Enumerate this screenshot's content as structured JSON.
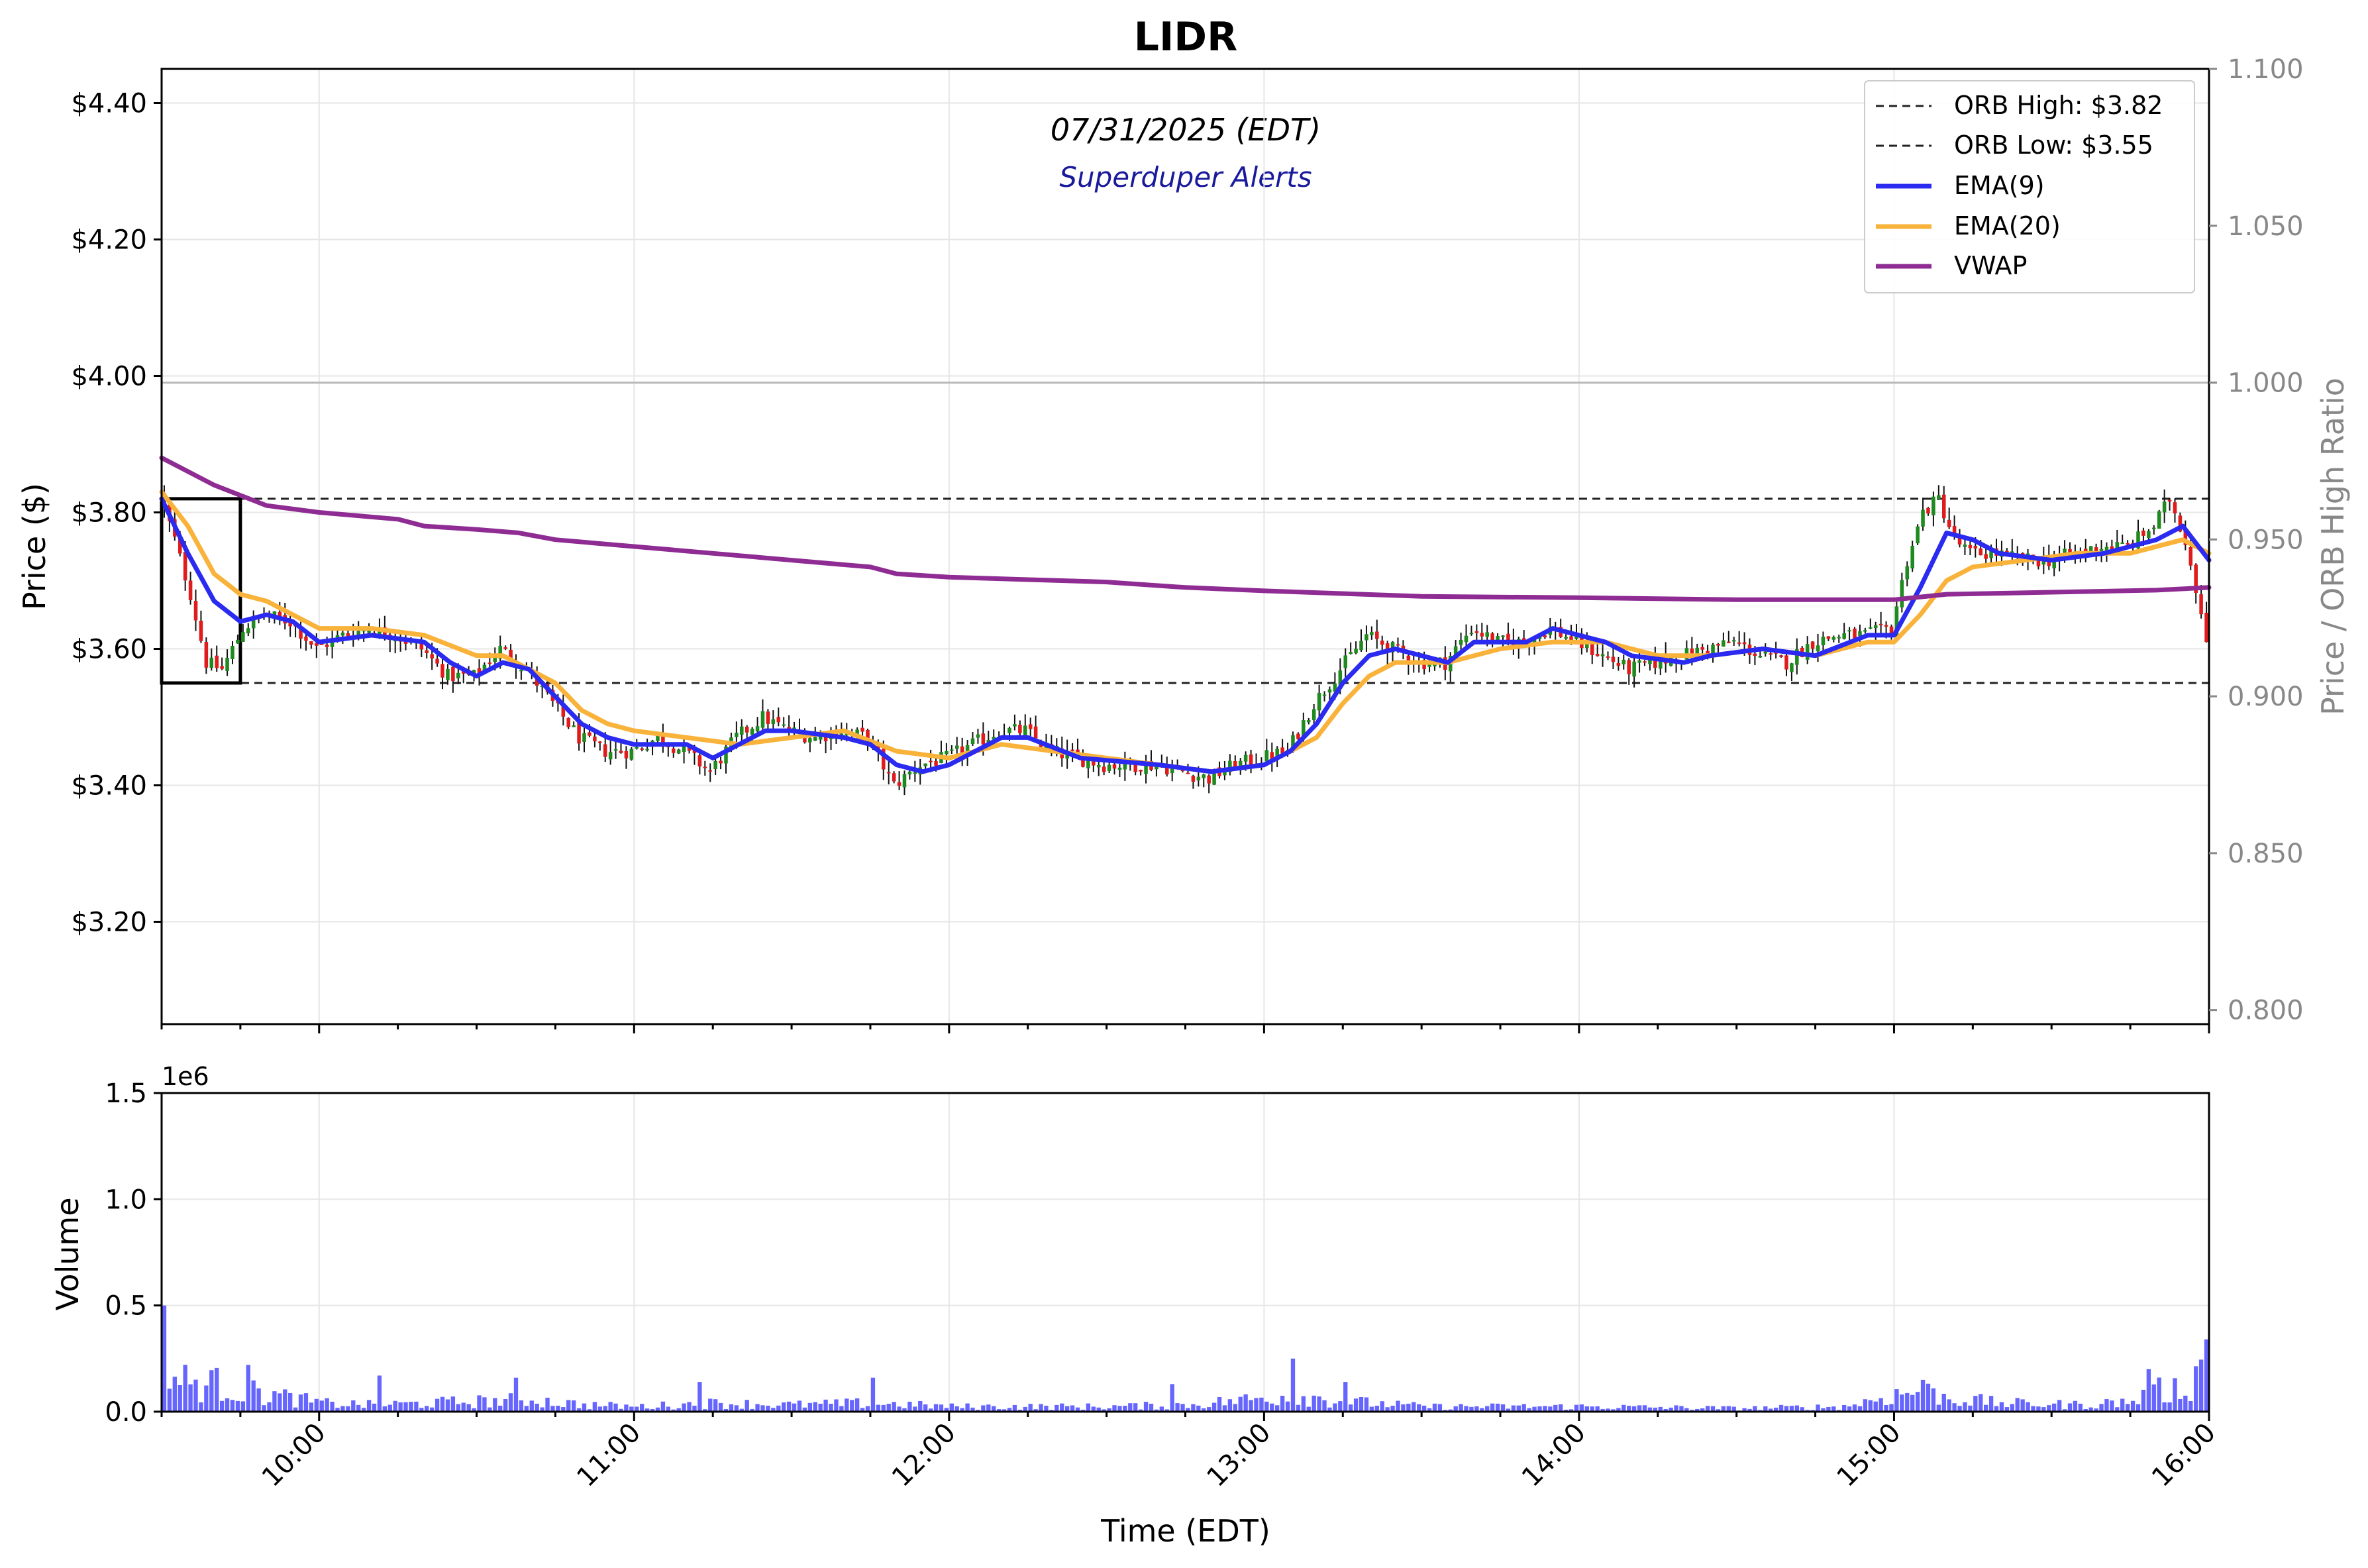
{
  "title": "LIDR",
  "subtitle": "07/31/2025 (EDT)",
  "watermark": "Superduper Alerts",
  "chart_data": [
    {
      "type": "candlestick",
      "panel": "price",
      "title": "LIDR",
      "ylabel": "Price ($)",
      "y2label": "Price / ORB High Ratio",
      "ylim": [
        3.05,
        4.45
      ],
      "y2lim": [
        0.7955,
        1.1
      ],
      "y_ticks": [
        "$3.20",
        "$3.40",
        "$3.60",
        "$3.80",
        "$4.00",
        "$4.20",
        "$4.40"
      ],
      "y_tick_values": [
        3.2,
        3.4,
        3.6,
        3.8,
        4.0,
        4.2,
        4.4
      ],
      "y2_ticks": [
        "0.800",
        "0.850",
        "0.900",
        "0.950",
        "1.000",
        "1.050",
        "1.100"
      ],
      "y2_tick_values": [
        0.8,
        0.85,
        0.9,
        0.95,
        1.0,
        1.05,
        1.1
      ],
      "xlim": [
        "09:30",
        "16:00"
      ],
      "grid": true,
      "legend_position": "top-right",
      "legend": [
        {
          "label": "ORB High: $3.82",
          "style": "dashed",
          "color": "#222222"
        },
        {
          "label": "ORB Low: $3.55",
          "style": "dashed",
          "color": "#222222"
        },
        {
          "label": "EMA(9)",
          "style": "solid",
          "color": "#2a2af0"
        },
        {
          "label": "EMA(20)",
          "style": "solid",
          "color": "#f9b23a"
        },
        {
          "label": "VWAP",
          "style": "solid",
          "color": "#8e2c93"
        }
      ],
      "orb_high": 3.82,
      "orb_low": 3.55,
      "orb_window": [
        "09:30",
        "09:45"
      ],
      "ratio_1_line": 1.0,
      "candle_colors": {
        "up": "#1f8a1f",
        "down": "#e01b1b"
      },
      "price_path": [
        [
          "09:30",
          3.83
        ],
        [
          "09:33",
          3.76
        ],
        [
          "09:36",
          3.68
        ],
        [
          "09:39",
          3.58
        ],
        [
          "09:42",
          3.57
        ],
        [
          "09:46",
          3.63
        ],
        [
          "09:50",
          3.65
        ],
        [
          "09:55",
          3.64
        ],
        [
          "10:00",
          3.6
        ],
        [
          "10:05",
          3.62
        ],
        [
          "10:10",
          3.63
        ],
        [
          "10:15",
          3.62
        ],
        [
          "10:20",
          3.6
        ],
        [
          "10:25",
          3.56
        ],
        [
          "10:30",
          3.56
        ],
        [
          "10:35",
          3.6
        ],
        [
          "10:40",
          3.57
        ],
        [
          "10:45",
          3.52
        ],
        [
          "10:50",
          3.47
        ],
        [
          "10:55",
          3.45
        ],
        [
          "11:00",
          3.45
        ],
        [
          "11:05",
          3.47
        ],
        [
          "11:10",
          3.45
        ],
        [
          "11:15",
          3.42
        ],
        [
          "11:20",
          3.47
        ],
        [
          "11:25",
          3.5
        ],
        [
          "11:30",
          3.48
        ],
        [
          "11:35",
          3.47
        ],
        [
          "11:40",
          3.48
        ],
        [
          "11:45",
          3.47
        ],
        [
          "11:50",
          3.4
        ],
        [
          "11:55",
          3.43
        ],
        [
          "12:00",
          3.44
        ],
        [
          "12:05",
          3.46
        ],
        [
          "12:10",
          3.48
        ],
        [
          "12:15",
          3.48
        ],
        [
          "12:20",
          3.45
        ],
        [
          "12:25",
          3.44
        ],
        [
          "12:30",
          3.43
        ],
        [
          "12:35",
          3.43
        ],
        [
          "12:40",
          3.43
        ],
        [
          "12:45",
          3.42
        ],
        [
          "12:50",
          3.41
        ],
        [
          "12:55",
          3.43
        ],
        [
          "13:00",
          3.44
        ],
        [
          "13:05",
          3.45
        ],
        [
          "13:10",
          3.52
        ],
        [
          "13:15",
          3.57
        ],
        [
          "13:20",
          3.62
        ],
        [
          "13:25",
          3.6
        ],
        [
          "13:30",
          3.58
        ],
        [
          "13:35",
          3.58
        ],
        [
          "13:40",
          3.63
        ],
        [
          "13:45",
          3.61
        ],
        [
          "13:50",
          3.61
        ],
        [
          "13:55",
          3.63
        ],
        [
          "14:00",
          3.61
        ],
        [
          "14:05",
          3.59
        ],
        [
          "14:10",
          3.57
        ],
        [
          "14:15",
          3.58
        ],
        [
          "14:20",
          3.59
        ],
        [
          "14:25",
          3.6
        ],
        [
          "14:30",
          3.61
        ],
        [
          "14:35",
          3.59
        ],
        [
          "14:40",
          3.58
        ],
        [
          "14:45",
          3.61
        ],
        [
          "14:50",
          3.62
        ],
        [
          "14:55",
          3.62
        ],
        [
          "15:00",
          3.63
        ],
        [
          "15:03",
          3.73
        ],
        [
          "15:06",
          3.8
        ],
        [
          "15:09",
          3.82
        ],
        [
          "15:12",
          3.76
        ],
        [
          "15:15",
          3.74
        ],
        [
          "15:20",
          3.74
        ],
        [
          "15:25",
          3.73
        ],
        [
          "15:30",
          3.73
        ],
        [
          "15:35",
          3.74
        ],
        [
          "15:40",
          3.75
        ],
        [
          "15:45",
          3.75
        ],
        [
          "15:50",
          3.78
        ],
        [
          "15:53",
          3.82
        ],
        [
          "15:56",
          3.76
        ],
        [
          "16:00",
          3.62
        ]
      ],
      "ema9": [
        [
          "09:30",
          3.82
        ],
        [
          "09:35",
          3.74
        ],
        [
          "09:40",
          3.67
        ],
        [
          "09:45",
          3.64
        ],
        [
          "09:50",
          3.65
        ],
        [
          "09:55",
          3.64
        ],
        [
          "10:00",
          3.61
        ],
        [
          "10:10",
          3.62
        ],
        [
          "10:20",
          3.61
        ],
        [
          "10:25",
          3.58
        ],
        [
          "10:30",
          3.56
        ],
        [
          "10:35",
          3.58
        ],
        [
          "10:40",
          3.57
        ],
        [
          "10:45",
          3.53
        ],
        [
          "10:50",
          3.49
        ],
        [
          "10:55",
          3.47
        ],
        [
          "11:00",
          3.46
        ],
        [
          "11:10",
          3.46
        ],
        [
          "11:15",
          3.44
        ],
        [
          "11:20",
          3.46
        ],
        [
          "11:25",
          3.48
        ],
        [
          "11:30",
          3.48
        ],
        [
          "11:40",
          3.47
        ],
        [
          "11:45",
          3.46
        ],
        [
          "11:50",
          3.43
        ],
        [
          "11:55",
          3.42
        ],
        [
          "12:00",
          3.43
        ],
        [
          "12:10",
          3.47
        ],
        [
          "12:15",
          3.47
        ],
        [
          "12:25",
          3.44
        ],
        [
          "12:40",
          3.43
        ],
        [
          "12:50",
          3.42
        ],
        [
          "13:00",
          3.43
        ],
        [
          "13:05",
          3.45
        ],
        [
          "13:10",
          3.49
        ],
        [
          "13:15",
          3.55
        ],
        [
          "13:20",
          3.59
        ],
        [
          "13:25",
          3.6
        ],
        [
          "13:35",
          3.58
        ],
        [
          "13:40",
          3.61
        ],
        [
          "13:50",
          3.61
        ],
        [
          "13:55",
          3.63
        ],
        [
          "14:05",
          3.61
        ],
        [
          "14:10",
          3.59
        ],
        [
          "14:20",
          3.58
        ],
        [
          "14:25",
          3.59
        ],
        [
          "14:35",
          3.6
        ],
        [
          "14:45",
          3.59
        ],
        [
          "14:55",
          3.62
        ],
        [
          "15:00",
          3.62
        ],
        [
          "15:05",
          3.69
        ],
        [
          "15:10",
          3.77
        ],
        [
          "15:15",
          3.76
        ],
        [
          "15:20",
          3.74
        ],
        [
          "15:30",
          3.73
        ],
        [
          "15:40",
          3.74
        ],
        [
          "15:50",
          3.76
        ],
        [
          "15:55",
          3.78
        ],
        [
          "16:00",
          3.73
        ]
      ],
      "ema20": [
        [
          "09:30",
          3.83
        ],
        [
          "09:35",
          3.78
        ],
        [
          "09:40",
          3.71
        ],
        [
          "09:45",
          3.68
        ],
        [
          "09:50",
          3.67
        ],
        [
          "09:55",
          3.65
        ],
        [
          "10:00",
          3.63
        ],
        [
          "10:10",
          3.63
        ],
        [
          "10:20",
          3.62
        ],
        [
          "10:30",
          3.59
        ],
        [
          "10:35",
          3.59
        ],
        [
          "10:40",
          3.57
        ],
        [
          "10:45",
          3.55
        ],
        [
          "10:50",
          3.51
        ],
        [
          "10:55",
          3.49
        ],
        [
          "11:00",
          3.48
        ],
        [
          "11:10",
          3.47
        ],
        [
          "11:20",
          3.46
        ],
        [
          "11:30",
          3.47
        ],
        [
          "11:40",
          3.48
        ],
        [
          "11:50",
          3.45
        ],
        [
          "12:00",
          3.44
        ],
        [
          "12:10",
          3.46
        ],
        [
          "12:20",
          3.45
        ],
        [
          "12:30",
          3.44
        ],
        [
          "12:40",
          3.43
        ],
        [
          "12:50",
          3.42
        ],
        [
          "13:00",
          3.43
        ],
        [
          "13:10",
          3.47
        ],
        [
          "13:15",
          3.52
        ],
        [
          "13:20",
          3.56
        ],
        [
          "13:25",
          3.58
        ],
        [
          "13:35",
          3.58
        ],
        [
          "13:45",
          3.6
        ],
        [
          "13:55",
          3.61
        ],
        [
          "14:05",
          3.61
        ],
        [
          "14:15",
          3.59
        ],
        [
          "14:25",
          3.59
        ],
        [
          "14:35",
          3.6
        ],
        [
          "14:45",
          3.59
        ],
        [
          "14:55",
          3.61
        ],
        [
          "15:00",
          3.61
        ],
        [
          "15:05",
          3.65
        ],
        [
          "15:10",
          3.7
        ],
        [
          "15:15",
          3.72
        ],
        [
          "15:25",
          3.73
        ],
        [
          "15:35",
          3.74
        ],
        [
          "15:45",
          3.74
        ],
        [
          "15:55",
          3.76
        ],
        [
          "16:00",
          3.74
        ]
      ],
      "vwap": [
        [
          "09:30",
          3.88
        ],
        [
          "09:35",
          3.86
        ],
        [
          "09:40",
          3.84
        ],
        [
          "09:45",
          3.825
        ],
        [
          "09:50",
          3.81
        ],
        [
          "10:00",
          3.8
        ],
        [
          "10:15",
          3.79
        ],
        [
          "10:20",
          3.78
        ],
        [
          "10:30",
          3.775
        ],
        [
          "10:38",
          3.77
        ],
        [
          "10:45",
          3.76
        ],
        [
          "11:00",
          3.75
        ],
        [
          "11:15",
          3.74
        ],
        [
          "11:30",
          3.73
        ],
        [
          "11:45",
          3.72
        ],
        [
          "11:50",
          3.71
        ],
        [
          "12:00",
          3.705
        ],
        [
          "12:30",
          3.698
        ],
        [
          "12:45",
          3.69
        ],
        [
          "13:00",
          3.685
        ],
        [
          "13:30",
          3.677
        ],
        [
          "14:00",
          3.675
        ],
        [
          "14:30",
          3.672
        ],
        [
          "15:00",
          3.672
        ],
        [
          "15:10",
          3.68
        ],
        [
          "15:30",
          3.683
        ],
        [
          "15:50",
          3.686
        ],
        [
          "16:00",
          3.69
        ]
      ]
    },
    {
      "type": "bar",
      "panel": "volume",
      "ylabel": "Volume",
      "xlabel": "Time (EDT)",
      "scale_label": "1e6",
      "ylim": [
        0,
        1.5
      ],
      "y_ticks": [
        "0.0",
        "0.5",
        "1.0",
        "1.5"
      ],
      "y_tick_values": [
        0.0,
        0.5,
        1.0,
        1.5
      ],
      "x_ticks": [
        "10:00",
        "11:00",
        "12:00",
        "13:00",
        "14:00",
        "15:00",
        "16:00"
      ],
      "bar_color": "#6666ff",
      "volume_profile": [
        [
          "09:30",
          0.5
        ],
        [
          "09:31",
          0.2
        ],
        [
          "09:35",
          0.17
        ],
        [
          "09:40",
          0.16
        ],
        [
          "09:45",
          0.12
        ],
        [
          "09:50",
          0.1
        ],
        [
          "10:00",
          0.05
        ],
        [
          "10:10",
          0.04
        ],
        [
          "10:20",
          0.05
        ],
        [
          "10:30",
          0.06
        ],
        [
          "10:40",
          0.07
        ],
        [
          "10:50",
          0.04
        ],
        [
          "11:00",
          0.03
        ],
        [
          "11:15",
          0.05
        ],
        [
          "11:30",
          0.04
        ],
        [
          "11:45",
          0.05
        ],
        [
          "12:00",
          0.03
        ],
        [
          "12:15",
          0.03
        ],
        [
          "12:30",
          0.03
        ],
        [
          "12:45",
          0.04
        ],
        [
          "13:00",
          0.08
        ],
        [
          "13:05",
          0.1
        ],
        [
          "13:15",
          0.06
        ],
        [
          "13:30",
          0.03
        ],
        [
          "14:00",
          0.03
        ],
        [
          "14:30",
          0.02
        ],
        [
          "14:50",
          0.03
        ],
        [
          "15:00",
          0.1
        ],
        [
          "15:05",
          0.12
        ],
        [
          "15:10",
          0.08
        ],
        [
          "15:20",
          0.05
        ],
        [
          "15:35",
          0.04
        ],
        [
          "15:45",
          0.06
        ],
        [
          "15:50",
          0.12
        ],
        [
          "15:55",
          0.14
        ],
        [
          "16:00",
          0.33
        ]
      ],
      "volume_spikes": [
        [
          "09:30",
          0.5
        ],
        [
          "09:46",
          0.22
        ],
        [
          "10:11",
          0.17
        ],
        [
          "10:37",
          0.16
        ],
        [
          "11:12",
          0.14
        ],
        [
          "11:45",
          0.16
        ],
        [
          "12:42",
          0.13
        ],
        [
          "13:05",
          0.25
        ],
        [
          "13:15",
          0.14
        ],
        [
          "15:05",
          0.15
        ],
        [
          "15:48",
          0.2
        ],
        [
          "15:59",
          0.34
        ]
      ]
    }
  ]
}
